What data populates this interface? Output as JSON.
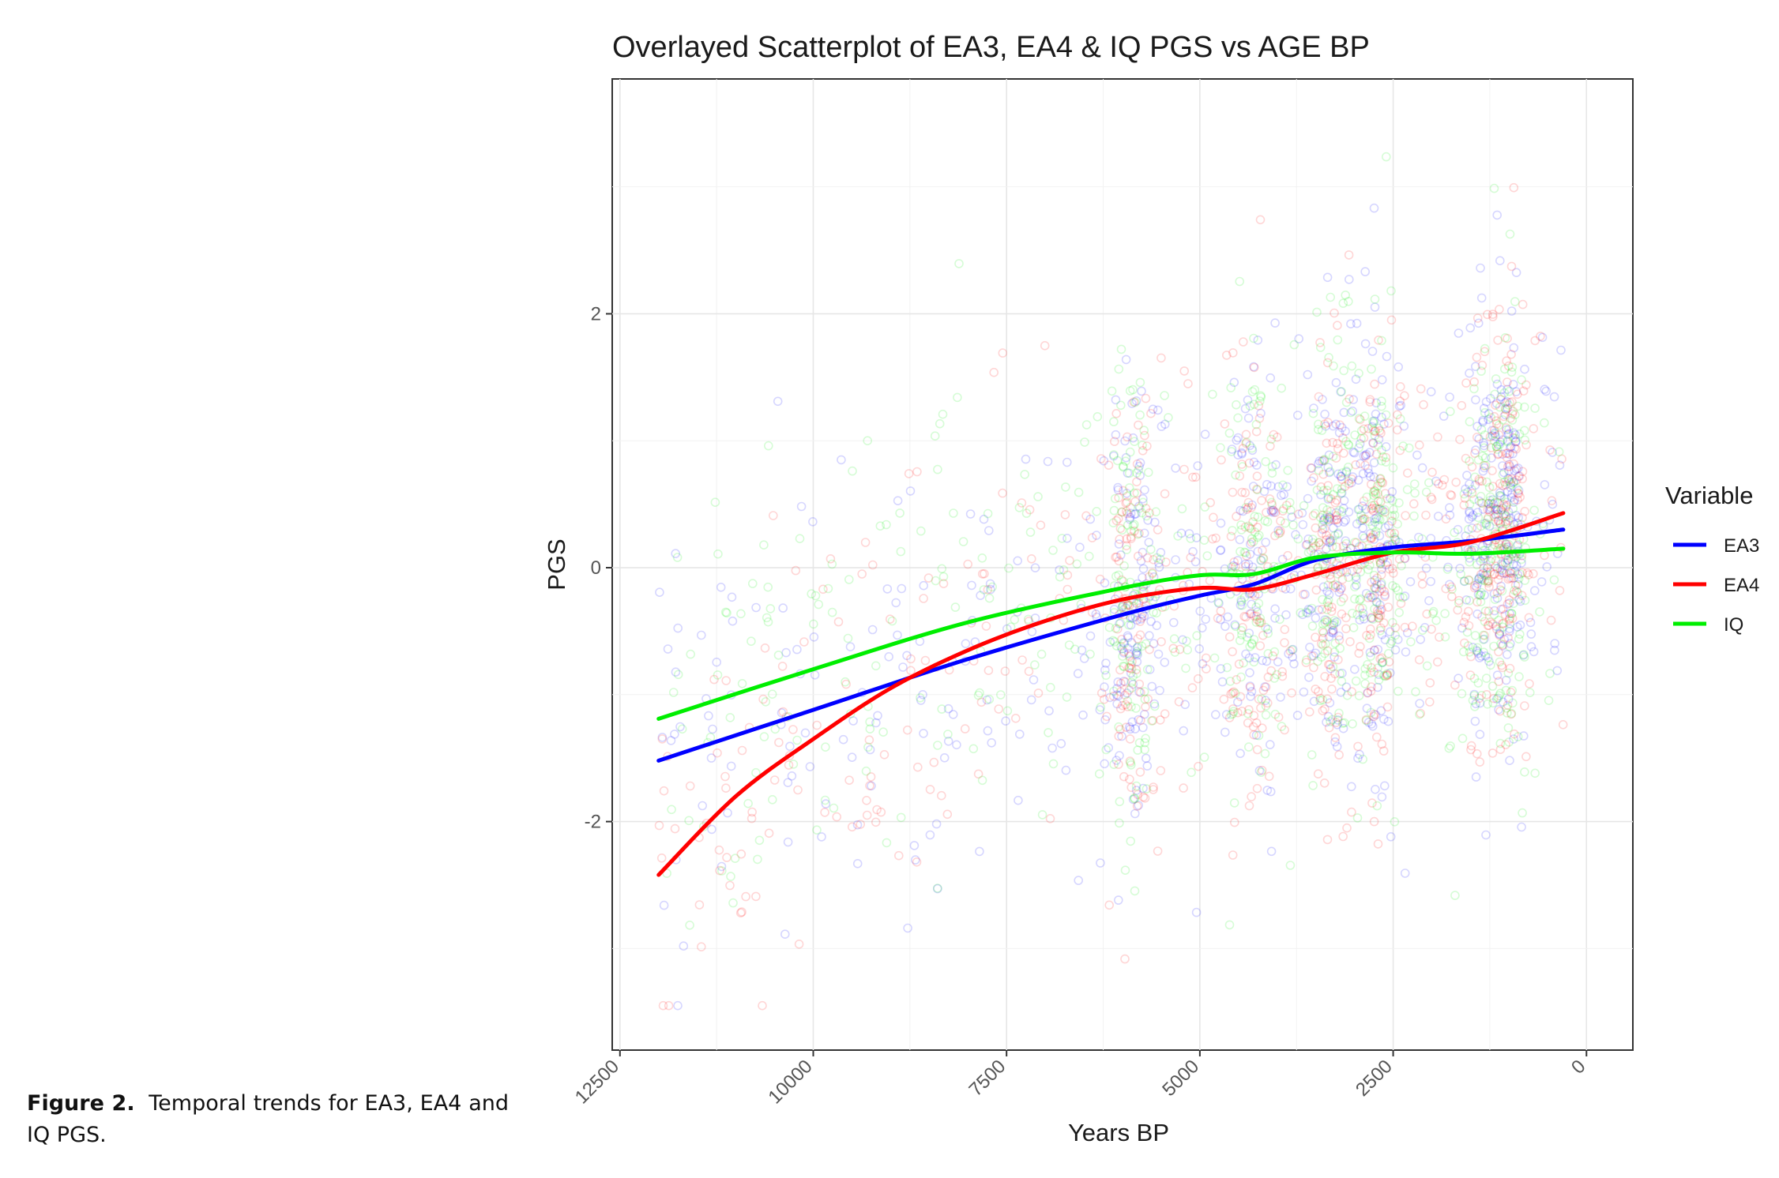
{
  "figure_caption": {
    "label": "Figure 2.",
    "text": "Temporal trends for EA3, EA4 and IQ PGS."
  },
  "chart_data": {
    "type": "scatter",
    "title": "Overlayed Scatterplot of EA3, EA4 & IQ PGS vs AGE BP",
    "xlabel": "Years BP",
    "ylabel": "PGS",
    "x_reversed": true,
    "xlim": [
      12600,
      -600
    ],
    "ylim": [
      -3.8,
      3.85
    ],
    "x_ticks": [
      12500,
      10000,
      7500,
      5000,
      2500,
      0
    ],
    "x_tick_labels": [
      "12500",
      "10000",
      "7500",
      "5000",
      "2500",
      "0"
    ],
    "y_ticks": [
      -2,
      0,
      2
    ],
    "y_tick_labels": [
      "-2",
      "0",
      "2"
    ],
    "grid": true,
    "legend": {
      "title": "Variable",
      "position": "right"
    },
    "series": [
      {
        "name": "EA3",
        "color": "#0000ff",
        "trend_x": [
          12000,
          10000,
          8000,
          6000,
          5000,
          4300,
          3500,
          2500,
          1500,
          300
        ],
        "trend_y": [
          -1.52,
          -1.12,
          -0.72,
          -0.37,
          -0.22,
          -0.13,
          0.06,
          0.16,
          0.21,
          0.3
        ]
      },
      {
        "name": "EA4",
        "color": "#ff0000",
        "trend_x": [
          12000,
          11000,
          10000,
          9000,
          8000,
          7000,
          6000,
          5000,
          4300,
          3500,
          2500,
          1500,
          300
        ],
        "trend_y": [
          -2.42,
          -1.8,
          -1.35,
          -0.95,
          -0.65,
          -0.42,
          -0.25,
          -0.16,
          -0.17,
          -0.05,
          0.12,
          0.2,
          0.43
        ]
      },
      {
        "name": "IQ",
        "color": "#00ee00",
        "trend_x": [
          12000,
          10000,
          8000,
          6000,
          5000,
          4300,
          3500,
          2500,
          1500,
          300
        ],
        "trend_y": [
          -1.19,
          -0.8,
          -0.43,
          -0.16,
          -0.06,
          -0.05,
          0.08,
          0.12,
          0.11,
          0.15
        ]
      }
    ]
  }
}
